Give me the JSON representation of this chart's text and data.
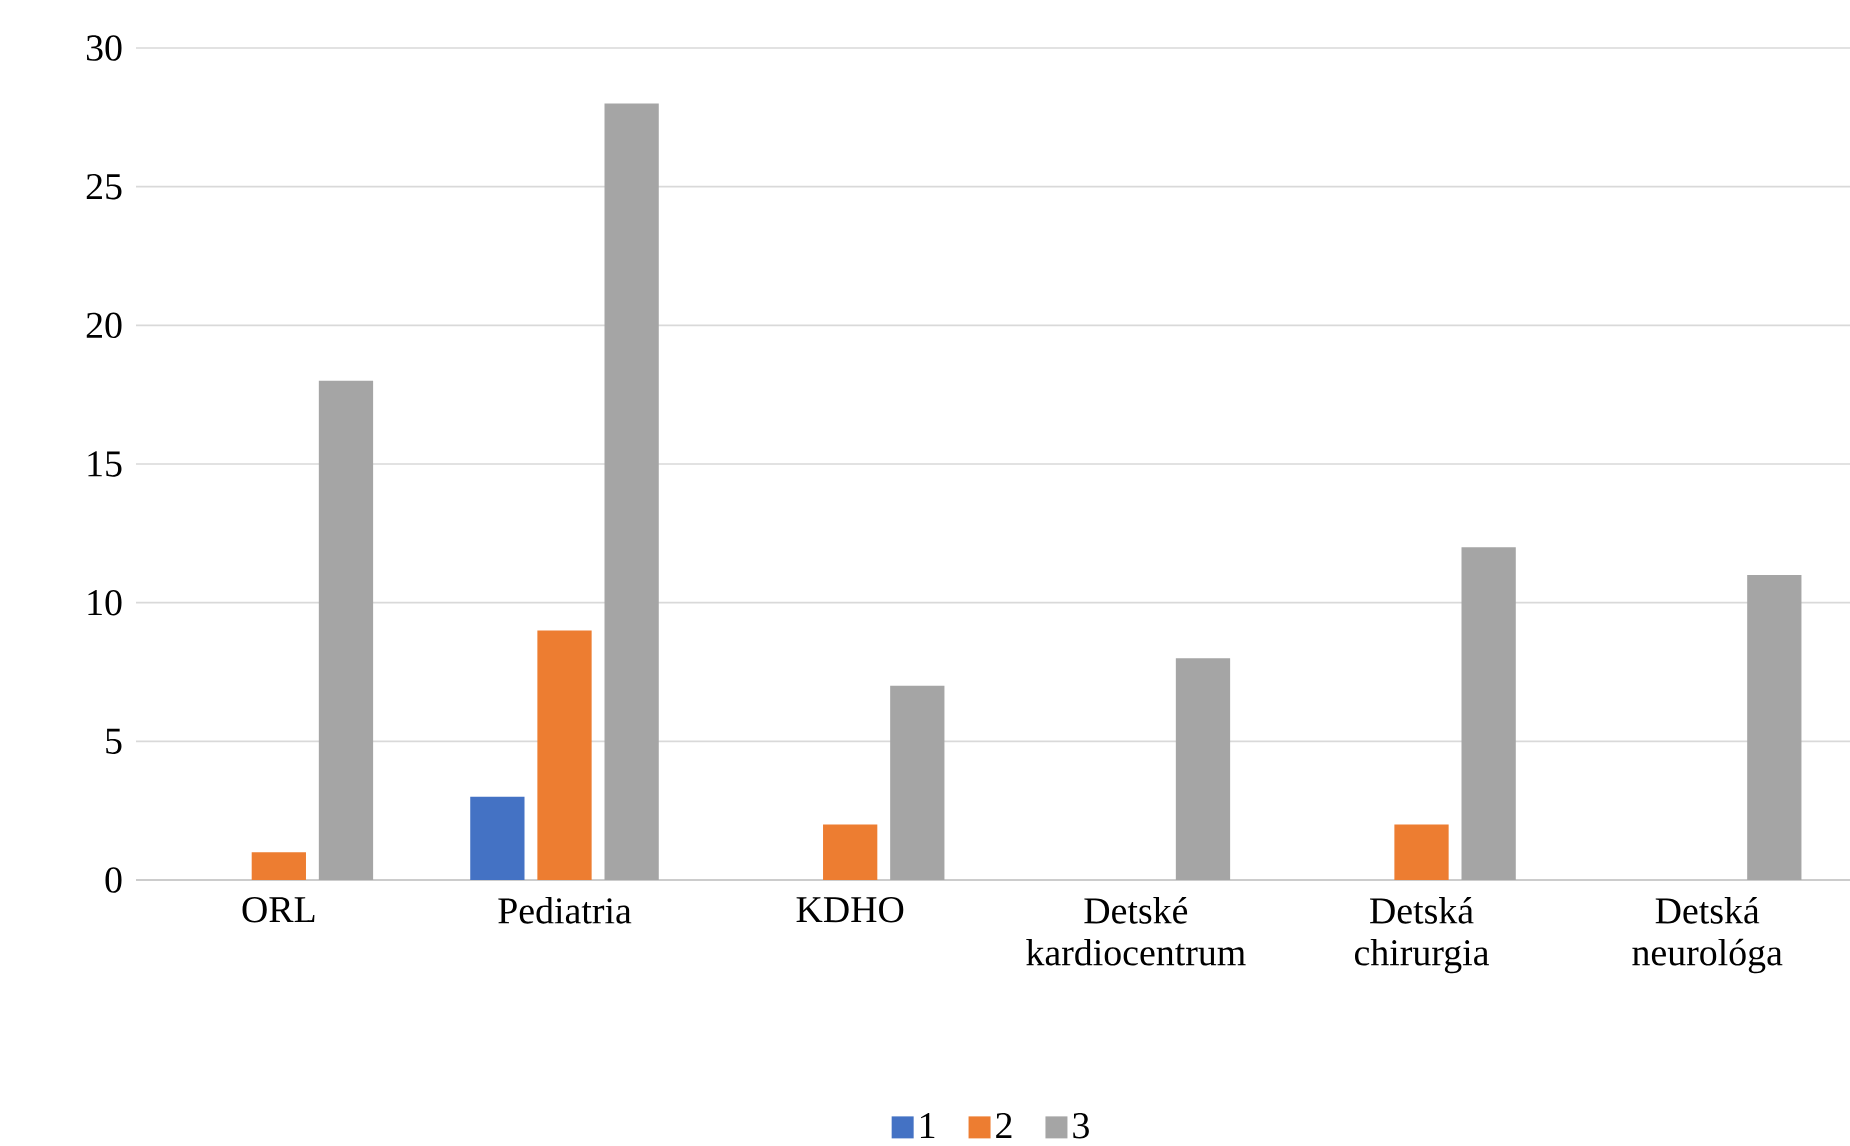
{
  "chart_data": {
    "type": "bar",
    "categories": [
      "ORL",
      "Pediatria",
      "KDHO",
      "Detské kardiocentrum",
      "Detská chirurgia",
      "Detská neurológa"
    ],
    "series": [
      {
        "name": "1",
        "color": "#4472c4",
        "values": [
          0,
          3,
          0,
          0,
          0,
          0
        ]
      },
      {
        "name": "2",
        "color": "#ed7d31",
        "values": [
          1,
          9,
          2,
          0,
          2,
          0
        ]
      },
      {
        "name": "3",
        "color": "#a5a5a5",
        "values": [
          18,
          28,
          7,
          8,
          12,
          11
        ]
      }
    ],
    "ylim": [
      0,
      30
    ],
    "yticks": [
      0,
      5,
      10,
      15,
      20,
      25,
      30
    ],
    "grid": "y",
    "legend": "bottom"
  }
}
